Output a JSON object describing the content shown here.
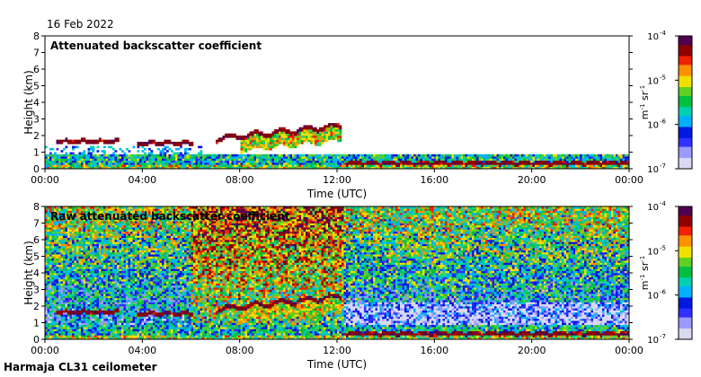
{
  "date_label": "16 Feb 2022",
  "footer_label": "Harmaja CL31 ceilometer",
  "colors": {
    "colormap": [
      "#d8d8f0",
      "#9a9aff",
      "#3030ff",
      "#0018e0",
      "#00b0ff",
      "#00d0b0",
      "#00c040",
      "#60d020",
      "#f0e000",
      "#ff9000",
      "#f02000",
      "#900000",
      "#500050"
    ]
  },
  "chart_data": [
    {
      "type": "heatmap",
      "title": "Attenuated backscatter coefficient",
      "xlabel": "Time (UTC)",
      "ylabel": "Height (km)",
      "x_ticks": [
        "00:00",
        "04:00",
        "08:00",
        "12:00",
        "16:00",
        "20:00",
        "00:00"
      ],
      "x_range_hours": [
        0,
        24
      ],
      "y_ticks": [
        "0",
        "1",
        "2",
        "3",
        "4",
        "5",
        "6",
        "7",
        "8"
      ],
      "ylim": [
        0,
        8
      ],
      "colorbar": {
        "ticks": [
          "10",
          "10",
          "10",
          "10"
        ],
        "tick_exponents": [
          "-7",
          "-6",
          "-5",
          "-4"
        ],
        "unit_parts": [
          "m",
          "-1",
          " sr",
          "-1"
        ],
        "scale": "log",
        "range": [
          1e-07,
          0.0001
        ]
      },
      "features": {
        "cloud_layers": [
          {
            "from_h": 0.5,
            "to_h": 3.0,
            "height_km": 1.65
          },
          {
            "from_h": 3.8,
            "to_h": 6.1,
            "height_km": 1.55
          },
          {
            "from_h": 7.0,
            "to_h": 12.2,
            "height_km_start": 1.8,
            "height_km_end": 2.6
          },
          {
            "from_h": 12.3,
            "to_h": 24.0,
            "height_km": 0.35
          }
        ],
        "boundary_layer_top_km": 0.8
      }
    },
    {
      "type": "heatmap",
      "title": "Raw attenuated backscatter coefficient",
      "xlabel": "Time (UTC)",
      "ylabel": "Height (km)",
      "x_ticks": [
        "00:00",
        "04:00",
        "08:00",
        "12:00",
        "16:00",
        "20:00",
        "00:00"
      ],
      "x_range_hours": [
        0,
        24
      ],
      "y_ticks": [
        "0",
        "1",
        "2",
        "3",
        "4",
        "5",
        "6",
        "7",
        "8"
      ],
      "ylim": [
        0,
        8
      ],
      "colorbar": {
        "ticks": [
          "10",
          "10",
          "10",
          "10"
        ],
        "tick_exponents": [
          "-7",
          "-6",
          "-5",
          "-4"
        ],
        "unit_parts": [
          "m",
          "-1",
          " sr",
          "-1"
        ],
        "scale": "log",
        "range": [
          1e-07,
          0.0001
        ]
      },
      "features": {
        "cloud_layers": [
          {
            "from_h": 0.5,
            "to_h": 3.0,
            "height_km": 1.65
          },
          {
            "from_h": 3.8,
            "to_h": 6.1,
            "height_km": 1.55
          },
          {
            "from_h": 7.0,
            "to_h": 12.2,
            "height_km_start": 1.8,
            "height_km_end": 2.6
          },
          {
            "from_h": 12.3,
            "to_h": 24.0,
            "height_km": 0.35
          }
        ],
        "noise_background": true
      }
    }
  ]
}
